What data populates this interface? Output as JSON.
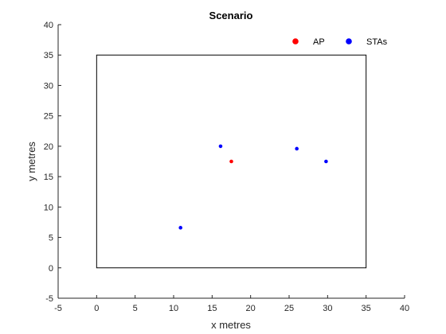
{
  "chart_data": {
    "type": "scatter",
    "title": "Scenario",
    "xlabel": "x metres",
    "ylabel": "y metres",
    "xlim": [
      -5,
      40
    ],
    "ylim": [
      -5,
      40
    ],
    "xticks": [
      "-5",
      "0",
      "5",
      "10",
      "15",
      "20",
      "25",
      "30",
      "35",
      "40"
    ],
    "yticks": [
      "-5",
      "0",
      "5",
      "10",
      "15",
      "20",
      "25",
      "30",
      "35",
      "40"
    ],
    "grid": false,
    "legend_position": "top-right",
    "boundary": {
      "x": [
        0,
        35
      ],
      "y": [
        0,
        35
      ],
      "color": "#000000"
    },
    "series": [
      {
        "name": "AP",
        "color": "#ff0000",
        "points": [
          {
            "x": 17.5,
            "y": 17.5
          }
        ]
      },
      {
        "name": "STAs",
        "color": "#0000ff",
        "points": [
          {
            "x": 16.1,
            "y": 20.0
          },
          {
            "x": 26.0,
            "y": 19.6
          },
          {
            "x": 29.8,
            "y": 17.5
          },
          {
            "x": 10.9,
            "y": 6.6
          }
        ]
      }
    ]
  }
}
